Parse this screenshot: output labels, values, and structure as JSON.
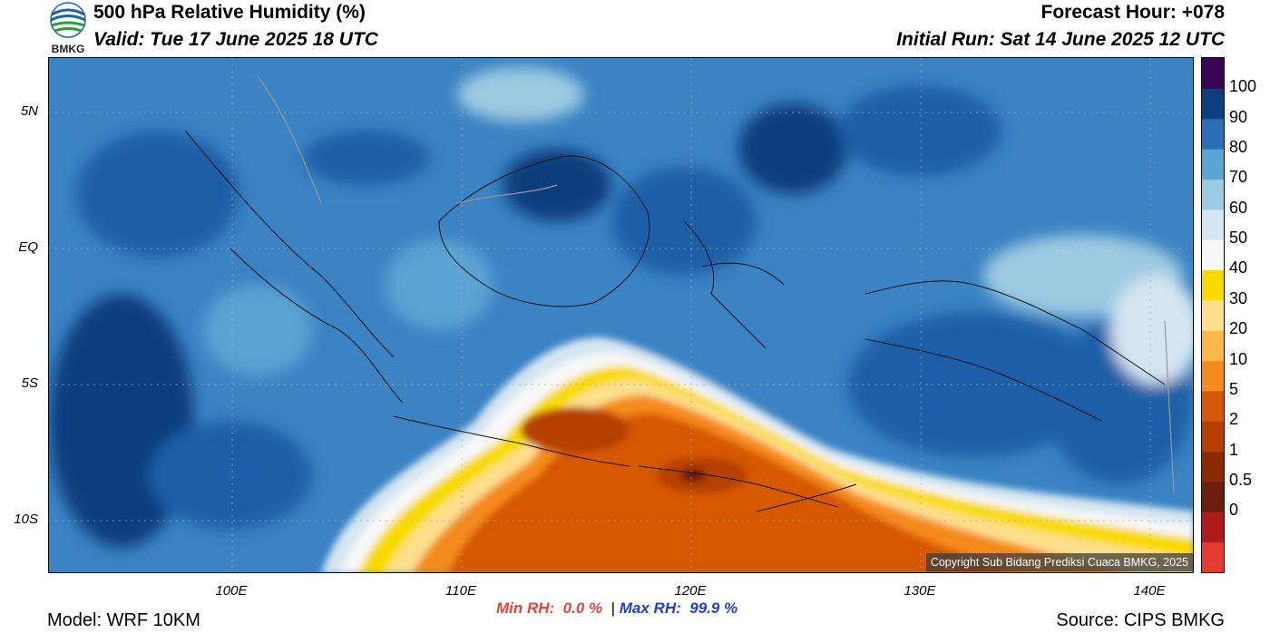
{
  "header": {
    "title": "500 hPa Relative Humidity (%)",
    "valid": "Valid: Tue 17 June 2025 18 UTC",
    "forecast_hour": "Forecast Hour: +078",
    "initial_run": "Initial Run: Sat 14 June 2025 12 UTC",
    "logo_text": "BMKG"
  },
  "map": {
    "lat_labels": [
      "5N",
      "EQ",
      "5S",
      "10S"
    ],
    "lon_labels": [
      "100E",
      "110E",
      "120E",
      "130E",
      "140E"
    ],
    "copyright": "Copyright Sub Bidang Prediksi Cuaca BMKG, 2025"
  },
  "colorbar": {
    "labels": [
      "100",
      "90",
      "80",
      "70",
      "60",
      "50",
      "40",
      "30",
      "20",
      "10",
      "5",
      "2",
      "1",
      "0.5",
      "0"
    ],
    "colors": [
      "#e33b33",
      "#b11a1a",
      "#6b1d0e",
      "#8b2b05",
      "#b53f02",
      "#d65806",
      "#f58a1f",
      "#fbb848",
      "#fddf8d",
      "#f9da00",
      "#f7f7f7",
      "#d5e5f1",
      "#9ccae2",
      "#5aa3d3",
      "#2c6fb7",
      "#0e3e7e",
      "#3a0553"
    ]
  },
  "stats": {
    "min_label": "Min RH:",
    "min_value": "0.0 %",
    "separator": "|",
    "max_label": "Max RH:",
    "max_value": "99.9 %"
  },
  "footer": {
    "model": "Model: WRF 10KM",
    "source": "Source: CIPS BMKG"
  }
}
